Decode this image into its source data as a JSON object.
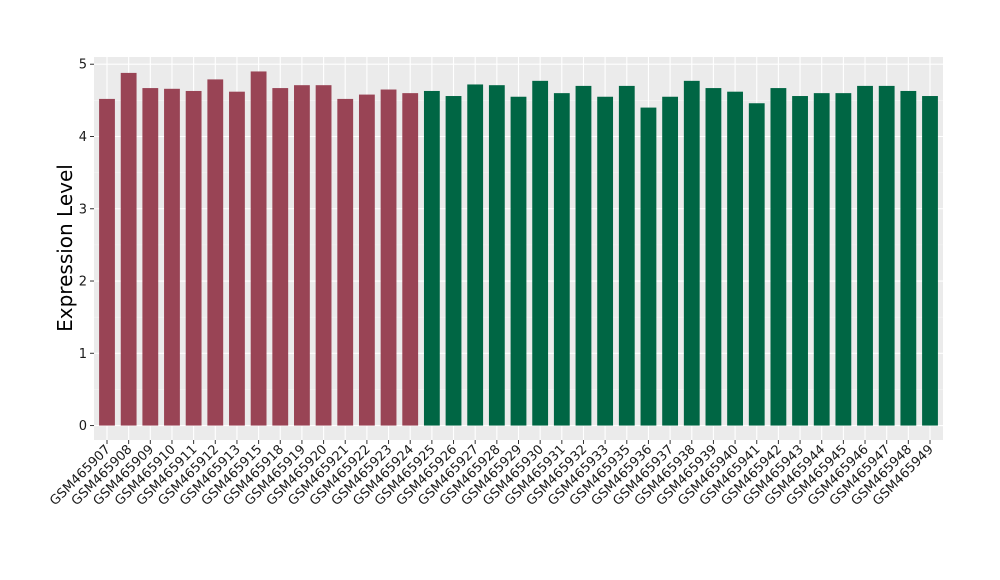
{
  "chart_data": {
    "type": "bar",
    "ylabel": "Expression Level",
    "xlabel": "",
    "ylim": [
      -0.2,
      5.1
    ],
    "yticks": [
      0,
      1,
      2,
      3,
      4,
      5
    ],
    "ytick_labels": [
      "0",
      "1",
      "2",
      "3",
      "4",
      "5"
    ],
    "grid": true,
    "categories": [
      "GSM465907",
      "GSM465908",
      "GSM465909",
      "GSM465910",
      "GSM465911",
      "GSM465912",
      "GSM465913",
      "GSM465915",
      "GSM465918",
      "GSM465919",
      "GSM465920",
      "GSM465921",
      "GSM465922",
      "GSM465923",
      "GSM465924",
      "GSM465925",
      "GSM465926",
      "GSM465927",
      "GSM465928",
      "GSM465929",
      "GSM465930",
      "GSM465931",
      "GSM465932",
      "GSM465933",
      "GSM465935",
      "GSM465936",
      "GSM465937",
      "GSM465938",
      "GSM465939",
      "GSM465940",
      "GSM465941",
      "GSM465942",
      "GSM465943",
      "GSM465944",
      "GSM465945",
      "GSM465946",
      "GSM465947",
      "GSM465948",
      "GSM465949"
    ],
    "values": [
      4.52,
      4.88,
      4.67,
      4.66,
      4.63,
      4.79,
      4.62,
      4.9,
      4.67,
      4.71,
      4.71,
      4.52,
      4.58,
      4.65,
      4.6,
      4.63,
      4.56,
      4.72,
      4.71,
      4.55,
      4.77,
      4.6,
      4.7,
      4.55,
      4.7,
      4.4,
      4.55,
      4.77,
      4.67,
      4.62,
      4.46,
      4.67,
      4.56,
      4.6,
      4.6,
      4.7,
      4.7,
      4.63,
      4.56
    ],
    "groups": [
      0,
      0,
      0,
      0,
      0,
      0,
      0,
      0,
      0,
      0,
      0,
      0,
      0,
      0,
      0,
      1,
      1,
      1,
      1,
      1,
      1,
      1,
      1,
      1,
      1,
      1,
      1,
      1,
      1,
      1,
      1,
      1,
      1,
      1,
      1,
      1,
      1,
      1,
      1
    ],
    "group_colors": [
      "#994455",
      "#006644"
    ]
  }
}
